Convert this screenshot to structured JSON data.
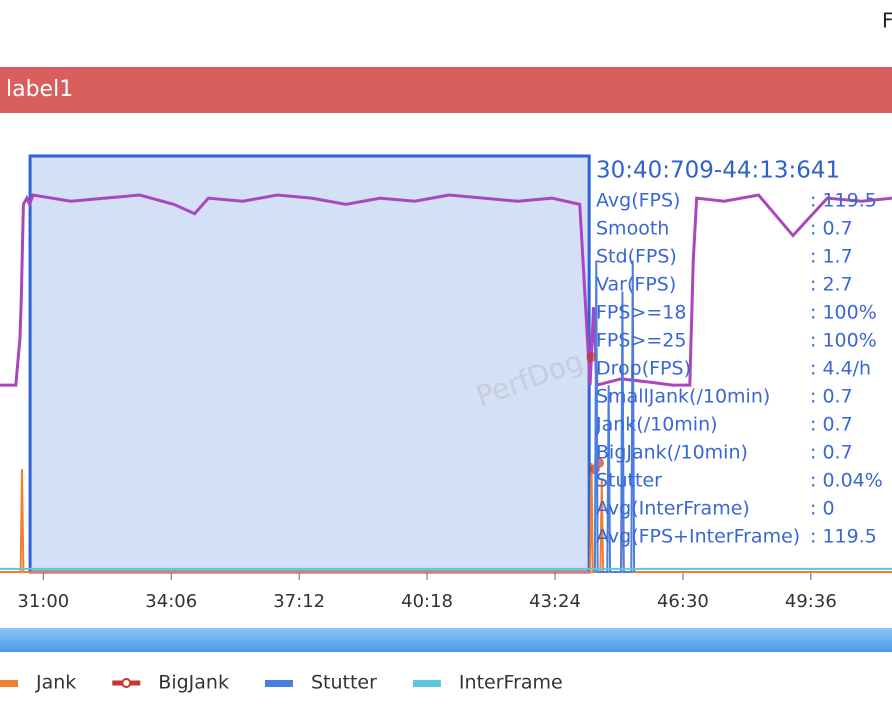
{
  "window_title_fragment": "F",
  "label_bar": "label1",
  "watermark": "PerfDog",
  "chart_data": {
    "type": "line",
    "xlim": [
      1797,
      3094
    ],
    "ylim": [
      0,
      130
    ],
    "xticks": [
      {
        "value": 1860,
        "label": "31:00"
      },
      {
        "value": 2046,
        "label": "34:06"
      },
      {
        "value": 2232,
        "label": "37:12"
      },
      {
        "value": 2418,
        "label": "40:18"
      },
      {
        "value": 2604,
        "label": "43:24"
      },
      {
        "value": 2790,
        "label": "46:30"
      },
      {
        "value": 2976,
        "label": "49:36"
      }
    ],
    "selection": {
      "label": "30:40:709-44:13:641",
      "start": 1840.709,
      "end": 2653.641
    },
    "stats": [
      [
        "Avg(FPS)",
        ": 119.5"
      ],
      [
        "Smooth",
        ": 0.7"
      ],
      [
        "Std(FPS)",
        ": 1.7"
      ],
      [
        "Var(FPS)",
        ": 2.7"
      ],
      [
        "FPS>=18",
        ": 100%"
      ],
      [
        "FPS>=25",
        ": 100%"
      ],
      [
        "Drop(FPS)",
        ": 4.4/h"
      ],
      [
        "SmallJank(/10min)",
        ": 0.7"
      ],
      [
        "Jank(/10min)",
        ": 0.7"
      ],
      [
        "BigJank(/10min)",
        ": 0.7"
      ],
      [
        "Stutter",
        ": 0.04%"
      ],
      [
        "Avg(InterFrame)",
        ": 0"
      ],
      [
        "Avg(FPS+InterFrame)",
        ": 119.5"
      ]
    ],
    "series": [
      {
        "color": "#ab47bc",
        "style": "line",
        "x": [
          1797,
          1820,
          1826,
          1828,
          1831,
          1836,
          1840,
          1845,
          1900,
          1950,
          2000,
          2050,
          2080,
          2100,
          2150,
          2200,
          2250,
          2300,
          2350,
          2400,
          2450,
          2500,
          2550,
          2600,
          2640,
          2655,
          2660,
          2665,
          2700,
          2740,
          2775,
          2800,
          2805,
          2810,
          2850,
          2900,
          2950,
          3000,
          3050,
          3094
        ],
        "values": [
          60,
          60,
          75,
          88,
          118,
          120,
          118,
          121,
          119,
          120,
          121,
          118,
          115,
          120,
          119,
          121,
          120,
          118,
          120,
          119,
          121,
          120,
          119,
          120,
          118,
          60,
          85,
          60,
          62,
          61,
          60,
          60,
          100,
          120,
          119,
          121,
          108,
          120,
          119,
          120
        ]
      },
      {
        "name": "Jank",
        "color": "#f08030",
        "style": "line",
        "x": [
          1797,
          1827,
          1829,
          1831,
          2655,
          2657,
          2659,
          2670,
          2672,
          2674,
          2700,
          2702,
          2704,
          3094
        ],
        "values": [
          0,
          0,
          33,
          0,
          0,
          35,
          0,
          0,
          30,
          0,
          0,
          28,
          0,
          0
        ]
      },
      {
        "name": "BigJank",
        "color": "#c8372d",
        "style": "dots",
        "x": [
          2657,
          2662,
          2668
        ],
        "values": [
          69,
          33,
          35
        ]
      },
      {
        "name": "Stutter",
        "color": "#4a7fe0",
        "style": "line",
        "x": [
          2662,
          2664,
          2666,
          2680,
          2682,
          2684,
          2700,
          2702,
          2704,
          2715,
          2717,
          2719
        ],
        "values": [
          0,
          100,
          0,
          0,
          60,
          0,
          0,
          90,
          0,
          0,
          100,
          0
        ]
      },
      {
        "name": "InterFrame",
        "color": "#5bc8dc",
        "style": "line",
        "x": [
          1797,
          3094
        ],
        "values": [
          1,
          1
        ]
      }
    ]
  }
}
